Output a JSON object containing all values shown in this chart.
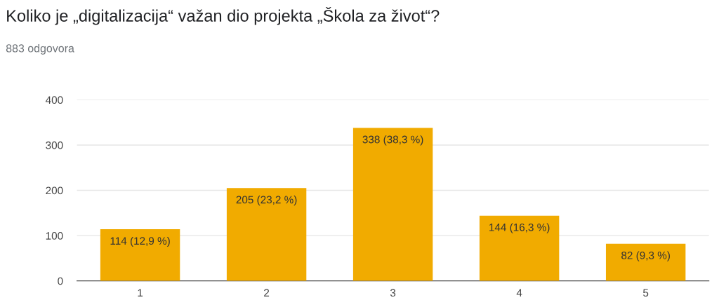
{
  "chart_data": {
    "type": "bar",
    "title": "Koliko je „digitalizacija“ važan dio projekta „Škola za život“?",
    "subtitle": "883 odgovora",
    "categories": [
      "1",
      "2",
      "3",
      "4",
      "5"
    ],
    "values": [
      114,
      205,
      338,
      144,
      82
    ],
    "value_labels": [
      "114 (12,9 %)",
      "205 (23,2 %)",
      "338 (38,3 %)",
      "144 (16,3 %)",
      "82 (9,3 %)"
    ],
    "color": "#f1ab00",
    "ylim": [
      0,
      400
    ],
    "yticks": [
      0,
      100,
      200,
      300,
      400
    ],
    "grid": "y",
    "legend": false
  }
}
